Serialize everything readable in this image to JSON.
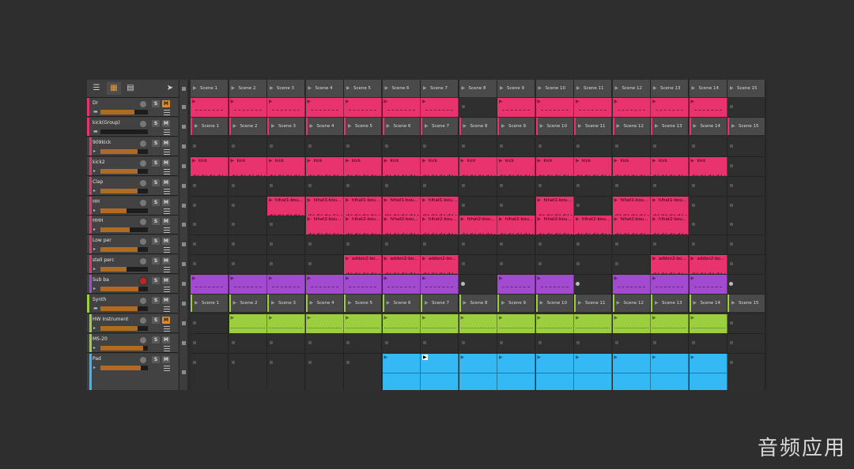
{
  "toolbar": {
    "buttons": [
      {
        "icon": "list-filter-icon"
      },
      {
        "icon": "grid-icon"
      },
      {
        "icon": "rows-icon"
      },
      {
        "icon": "pointer-icon"
      }
    ]
  },
  "colors": {
    "pink": "#e8336e",
    "purple": "#a24bd0",
    "green": "#9ccf3f",
    "cyan": "#35b9f5",
    "orange": "#e08b28",
    "scene_bg": "#4a4a4a"
  },
  "scenes": [
    "Scene 1",
    "Scene 2",
    "Scene 3",
    "Scene 4",
    "Scene 5",
    "Scene 6",
    "Scene 7",
    "Scene 8",
    "Scene 9",
    "Scene 10",
    "Scene 11",
    "Scene 12",
    "Scene 13",
    "Scene 14",
    "Scene 15"
  ],
  "tracks": [
    {
      "name": "Dr",
      "color": "#e8336e",
      "group": true,
      "mute_on": true,
      "rec_armed": false,
      "fader": 0.72
    },
    {
      "name": "kick(Group)",
      "color": "#e8336e",
      "group": true,
      "mute_on": false,
      "rec_armed": false,
      "fader": 0.0
    },
    {
      "name": "909kick",
      "color": "#e8336e",
      "group": false,
      "mute_on": false,
      "rec_armed": false,
      "fader": 0.78
    },
    {
      "name": "kick2",
      "color": "#e8336e",
      "group": false,
      "mute_on": false,
      "rec_armed": false,
      "fader": 0.78
    },
    {
      "name": "Clap",
      "color": "#e8336e",
      "group": false,
      "mute_on": false,
      "rec_armed": false,
      "fader": 0.78
    },
    {
      "name": "HH",
      "color": "#e8336e",
      "group": false,
      "mute_on": false,
      "rec_armed": false,
      "fader": 0.55
    },
    {
      "name": "HHH",
      "color": "#e8336e",
      "group": false,
      "mute_on": false,
      "rec_armed": false,
      "fader": 0.62
    },
    {
      "name": "Low per",
      "color": "#e8336e",
      "group": false,
      "mute_on": false,
      "rec_armed": false,
      "fader": 0.78
    },
    {
      "name": "stell perc",
      "color": "#e8336e",
      "group": false,
      "mute_on": false,
      "rec_armed": false,
      "fader": 0.55
    },
    {
      "name": "Sub ba",
      "color": "#a24bd0",
      "group": false,
      "mute_on": false,
      "rec_armed": true,
      "fader": 0.8
    },
    {
      "name": "Synth",
      "color": "#9ccf3f",
      "group": true,
      "mute_on": false,
      "rec_armed": false,
      "fader": 0.78
    },
    {
      "name": "HW Instrument",
      "color": "#9ccf3f",
      "group": false,
      "mute_on": true,
      "rec_armed": false,
      "fader": 0.78
    },
    {
      "name": "MS-20",
      "color": "#9ccf3f",
      "group": false,
      "mute_on": false,
      "rec_armed": false,
      "fader": 0.9
    },
    {
      "name": "Pad",
      "color": "#35b9f5",
      "group": false,
      "mute_on": false,
      "rec_armed": false,
      "fader": 0.85
    }
  ],
  "track_buttons": {
    "solo": "S",
    "mute": "M"
  },
  "clip_rows": [
    {
      "type": "clips",
      "color": "#e8336e",
      "cells": [
        1,
        1,
        1,
        1,
        1,
        1,
        1,
        0,
        1,
        1,
        1,
        1,
        1,
        1,
        0
      ],
      "labels": []
    },
    {
      "type": "scenes",
      "bar": "pink"
    },
    {
      "type": "clips",
      "color": "#e8336e",
      "cells": [
        0,
        0,
        0,
        0,
        0,
        0,
        0,
        0,
        0,
        0,
        0,
        0,
        0,
        0,
        0
      ]
    },
    {
      "type": "clips",
      "color": "#e8336e",
      "cells": [
        1,
        1,
        1,
        1,
        1,
        1,
        1,
        1,
        1,
        1,
        1,
        1,
        1,
        1,
        0
      ],
      "label": "kick",
      "wave": true
    },
    {
      "type": "clips",
      "color": "#e8336e",
      "cells": [
        0,
        0,
        0,
        0,
        0,
        0,
        0,
        0,
        0,
        0,
        0,
        0,
        0,
        0,
        0
      ]
    },
    {
      "type": "clips",
      "color": "#e8336e",
      "cells": [
        0,
        0,
        1,
        1,
        1,
        1,
        1,
        0,
        0,
        1,
        0,
        1,
        1,
        0,
        0
      ],
      "label": "hihat1-bou...",
      "wave": true
    },
    {
      "type": "clips",
      "color": "#e8336e",
      "cells": [
        0,
        0,
        0,
        1,
        1,
        1,
        1,
        1,
        1,
        1,
        1,
        1,
        1,
        0,
        0
      ],
      "label": "hihat2-bou...",
      "wave": true
    },
    {
      "type": "clips",
      "color": "#e8336e",
      "cells": [
        0,
        0,
        0,
        0,
        0,
        0,
        0,
        0,
        0,
        0,
        0,
        0,
        0,
        0,
        0
      ]
    },
    {
      "type": "clips",
      "color": "#e8336e",
      "cells": [
        0,
        0,
        0,
        0,
        1,
        1,
        1,
        0,
        0,
        0,
        0,
        0,
        1,
        1,
        0
      ],
      "label": "addon2-bo...",
      "wave": true
    },
    {
      "type": "clips",
      "color": "#a24bd0",
      "cells": [
        1,
        1,
        1,
        1,
        1,
        1,
        1,
        2,
        1,
        1,
        2,
        1,
        1,
        1,
        2
      ]
    },
    {
      "type": "scenes",
      "bar": "green"
    },
    {
      "type": "clips",
      "color": "#9ccf3f",
      "cells": [
        0,
        1,
        1,
        1,
        1,
        1,
        1,
        1,
        1,
        1,
        1,
        1,
        1,
        1,
        0
      ]
    },
    {
      "type": "clips",
      "color": "#9ccf3f",
      "cells": [
        0,
        0,
        0,
        0,
        0,
        0,
        0,
        0,
        0,
        0,
        0,
        0,
        0,
        0,
        0
      ]
    },
    {
      "type": "clips",
      "color": "#35b9f5",
      "cells": [
        0,
        0,
        0,
        0,
        0,
        1,
        1,
        1,
        1,
        1,
        1,
        1,
        1,
        1,
        0
      ],
      "tall": true,
      "playing": 6
    }
  ],
  "watermark": "音频应用"
}
